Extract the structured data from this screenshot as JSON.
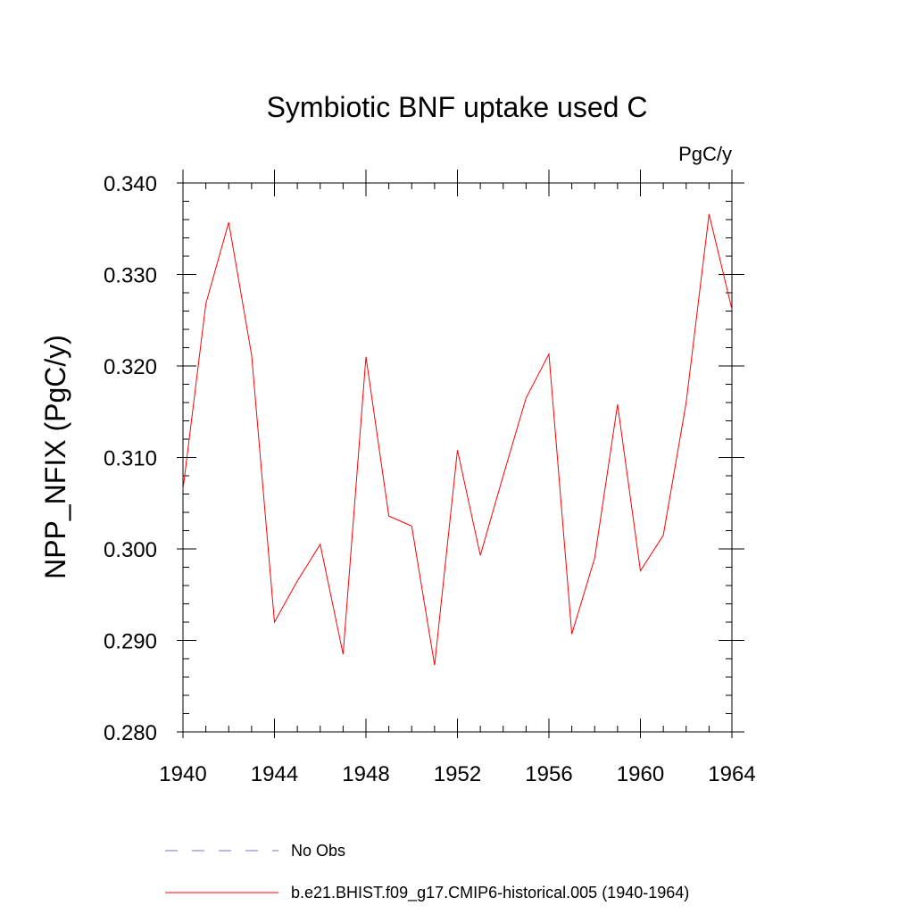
{
  "chart_data": {
    "type": "line",
    "title": "Symbiotic BNF uptake used C",
    "units": "PgC/y",
    "xlabel": "",
    "ylabel": "NPP_NFIX  (PgC/y)",
    "xlim": [
      1940,
      1964
    ],
    "ylim": [
      0.28,
      0.34
    ],
    "x_ticks": [
      1940,
      1944,
      1948,
      1952,
      1956,
      1960,
      1964
    ],
    "y_ticks": [
      "0.280",
      "0.290",
      "0.300",
      "0.310",
      "0.320",
      "0.330",
      "0.340"
    ],
    "x_minor_step": 1,
    "y_minor_step": 0.002,
    "series": [
      {
        "name": "b.e21.BHIST.f09_g17.CMIP6-historical.005 (1940-1964)",
        "color": "#ff0000",
        "dash": "solid",
        "x": [
          1940,
          1941,
          1942,
          1943,
          1944,
          1945,
          1946,
          1947,
          1948,
          1949,
          1950,
          1951,
          1952,
          1953,
          1954,
          1955,
          1956,
          1957,
          1958,
          1959,
          1960,
          1961,
          1962,
          1963,
          1964
        ],
        "y": [
          0.3065,
          0.3268,
          0.3357,
          0.3212,
          0.292,
          0.2965,
          0.3005,
          0.2885,
          0.321,
          0.3036,
          0.3025,
          0.2873,
          0.3108,
          0.2993,
          0.308,
          0.3165,
          0.3213,
          0.2907,
          0.299,
          0.3158,
          0.2976,
          0.3015,
          0.316,
          0.3366,
          0.3262
        ]
      }
    ],
    "legend": [
      {
        "label": "No Obs",
        "color": "#7b6fd0",
        "dash": "dashed"
      },
      {
        "label": "b.e21.BHIST.f09_g17.CMIP6-historical.005 (1940-1964)",
        "color": "#ff0000",
        "dash": "solid"
      }
    ]
  }
}
